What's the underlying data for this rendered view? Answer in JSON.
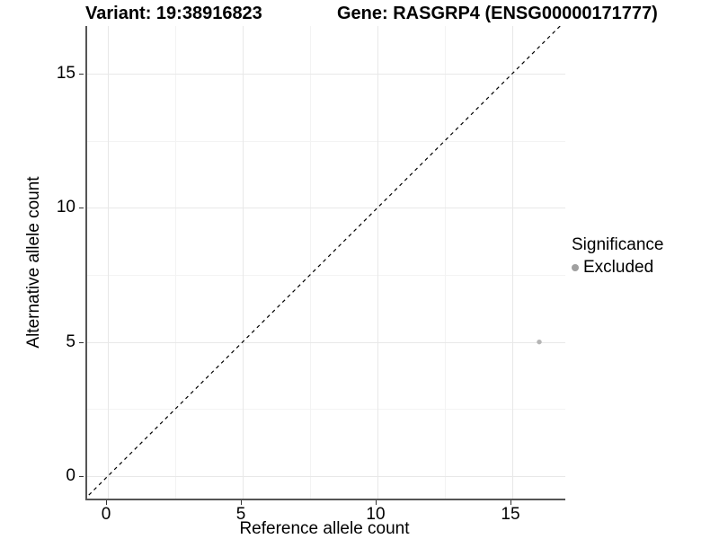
{
  "titles": {
    "variant": "Variant: 19:38916823",
    "gene": "Gene: RASGRP4 (ENSG00000171777)"
  },
  "chart_data": {
    "type": "scatter",
    "title_left": "Variant: 19:38916823",
    "title_right": "Gene: RASGRP4 (ENSG00000171777)",
    "xlabel": "Reference allele count",
    "ylabel": "Alternative allele count",
    "xlim": [
      -0.77,
      16.97
    ],
    "ylim": [
      -0.84,
      16.77
    ],
    "x_ticks": [
      "0",
      "5",
      "10",
      "15"
    ],
    "x_tick_values": [
      0,
      5,
      10,
      15
    ],
    "y_ticks": [
      "0",
      "5",
      "10",
      "15"
    ],
    "y_tick_values": [
      0,
      5,
      10,
      15
    ],
    "minor_tick_values": [
      2.5,
      7.5,
      12.5
    ],
    "grid": "on",
    "legend_position": "right",
    "series": [
      {
        "name": "Excluded",
        "color": "#b5b5b5",
        "points": [
          {
            "x": 16,
            "y": 5
          }
        ]
      }
    ],
    "reference_line": {
      "kind": "identity y=x",
      "style": "dashed",
      "color": "#000000"
    }
  },
  "legend": {
    "title": "Significance",
    "items": [
      {
        "label": "Excluded",
        "color": "#a0a0a0"
      }
    ]
  },
  "colors": {
    "background": "#ffffff",
    "axis_line": "#555555",
    "tick": "#333333",
    "grid_major": "#e8e8e8",
    "grid_minor": "#f3f3f3",
    "point": "#b5b5b5",
    "dashed_line": "#000000"
  }
}
